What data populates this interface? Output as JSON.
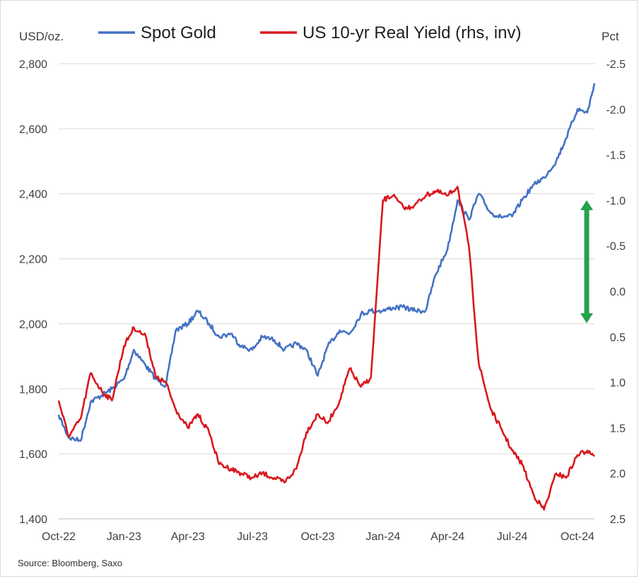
{
  "chart_data": {
    "type": "line",
    "title": "",
    "source": "Source: Bloomberg, Saxo",
    "legend_placement": "top",
    "grid": "horizontal",
    "left_axis": {
      "unit_label": "USD/oz.",
      "ticks": [
        "2,800",
        "2,600",
        "2,400",
        "2,200",
        "2,000",
        "1,800",
        "1,600",
        "1,400"
      ],
      "ylim": [
        1400,
        2800
      ]
    },
    "right_axis": {
      "unit_label": "Pct",
      "ticks": [
        "-2.5",
        "-2.0",
        "-1.5",
        "-1.0",
        "-0.5",
        "0.0",
        "0.5",
        "1.0",
        "1.5",
        "2.0",
        "2.5"
      ],
      "ylim": [
        2.5,
        -2.5
      ],
      "inverted": true
    },
    "x_axis": {
      "type": "date",
      "ticks": [
        "Oct-22",
        "Jan-23",
        "Apr-23",
        "Jul-23",
        "Oct-23",
        "Jan-24",
        "Apr-24",
        "Jul-24",
        "Oct-24"
      ],
      "xlim": [
        "2022-10-01",
        "2024-10-25"
      ]
    },
    "series": [
      {
        "name": "Spot Gold",
        "color": "#4472c4",
        "axis": "left",
        "x": [
          "2022-10-01",
          "2022-10-15",
          "2022-11-01",
          "2022-11-15",
          "2022-12-01",
          "2022-12-15",
          "2023-01-01",
          "2023-01-15",
          "2023-02-01",
          "2023-02-15",
          "2023-03-01",
          "2023-03-15",
          "2023-04-01",
          "2023-04-15",
          "2023-05-01",
          "2023-05-15",
          "2023-06-01",
          "2023-06-15",
          "2023-07-01",
          "2023-07-15",
          "2023-08-01",
          "2023-08-15",
          "2023-09-01",
          "2023-09-15",
          "2023-10-01",
          "2023-10-15",
          "2023-11-01",
          "2023-11-15",
          "2023-12-01",
          "2023-12-15",
          "2024-01-01",
          "2024-01-15",
          "2024-02-01",
          "2024-02-15",
          "2024-03-01",
          "2024-03-15",
          "2024-04-01",
          "2024-04-15",
          "2024-05-01",
          "2024-05-15",
          "2024-06-01",
          "2024-06-15",
          "2024-07-01",
          "2024-07-15",
          "2024-08-01",
          "2024-08-15",
          "2024-09-01",
          "2024-09-15",
          "2024-10-01",
          "2024-10-15",
          "2024-10-25"
        ],
        "values": [
          1720,
          1650,
          1640,
          1760,
          1780,
          1800,
          1830,
          1920,
          1870,
          1830,
          1810,
          1980,
          2000,
          2040,
          2000,
          1960,
          1970,
          1930,
          1920,
          1960,
          1950,
          1920,
          1940,
          1920,
          1840,
          1930,
          1980,
          1970,
          2030,
          2040,
          2040,
          2050,
          2050,
          2040,
          2040,
          2150,
          2230,
          2380,
          2320,
          2400,
          2340,
          2330,
          2330,
          2380,
          2430,
          2450,
          2500,
          2570,
          2660,
          2650,
          2740
        ]
      },
      {
        "name": "US 10-yr Real Yield (rhs, inv)",
        "color": "#d9181e",
        "axis": "right",
        "x": [
          "2022-10-01",
          "2022-10-15",
          "2022-11-01",
          "2022-11-15",
          "2022-12-01",
          "2022-12-15",
          "2023-01-01",
          "2023-01-15",
          "2023-02-01",
          "2023-02-15",
          "2023-03-01",
          "2023-03-15",
          "2023-04-01",
          "2023-04-15",
          "2023-05-01",
          "2023-05-15",
          "2023-06-01",
          "2023-06-15",
          "2023-07-01",
          "2023-07-15",
          "2023-08-01",
          "2023-08-15",
          "2023-09-01",
          "2023-09-15",
          "2023-10-01",
          "2023-10-15",
          "2023-11-01",
          "2023-11-15",
          "2023-12-01",
          "2023-12-15",
          "2024-01-01",
          "2024-01-15",
          "2024-02-01",
          "2024-02-15",
          "2024-03-01",
          "2024-03-15",
          "2024-04-01",
          "2024-04-15",
          "2024-05-01",
          "2024-05-15",
          "2024-06-01",
          "2024-06-15",
          "2024-07-01",
          "2024-07-15",
          "2024-08-01",
          "2024-08-15",
          "2024-09-01",
          "2024-09-15",
          "2024-10-01",
          "2024-10-15",
          "2024-10-25"
        ],
        "values": [
          1.2,
          1.6,
          1.4,
          0.9,
          1.1,
          1.2,
          0.6,
          0.4,
          0.5,
          0.95,
          1.0,
          1.3,
          1.5,
          1.35,
          1.55,
          1.9,
          1.95,
          2.0,
          2.05,
          2.0,
          2.05,
          2.1,
          1.95,
          1.55,
          1.35,
          1.45,
          1.2,
          0.85,
          1.05,
          0.95,
          -1.0,
          -1.05,
          -0.9,
          -0.95,
          -1.05,
          -1.1,
          -1.05,
          -1.15,
          -0.5,
          0.8,
          1.3,
          1.5,
          1.75,
          1.9,
          2.25,
          2.4,
          2.0,
          2.05,
          1.8,
          1.75,
          1.8
        ]
      }
    ],
    "annotation": {
      "type": "double-arrow",
      "color": "#23a34a",
      "axis": "right",
      "from": -1.0,
      "to": 0.35
    }
  }
}
